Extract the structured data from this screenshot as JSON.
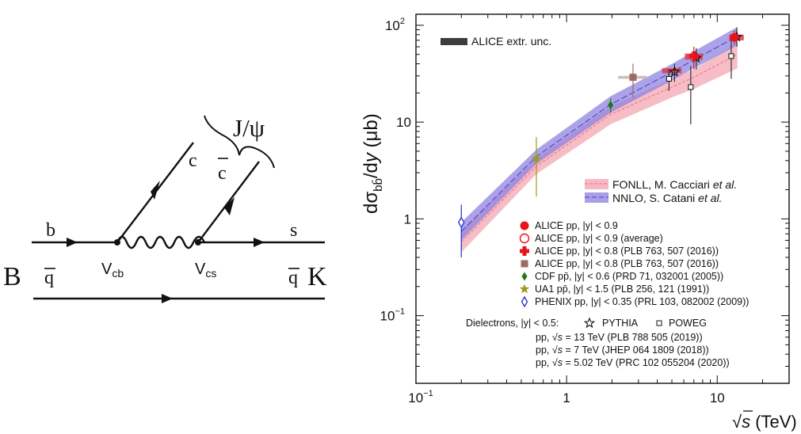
{
  "feynman": {
    "labels": {
      "b": "b",
      "s": "s",
      "c": "c",
      "cbar": "c",
      "qbar_in": "q",
      "qbar_out": "q",
      "B": "B",
      "K": "K",
      "Vcb_main": "V",
      "Vcb_sub": "cb",
      "Vcs_main": "V",
      "Vcs_sub": "cs",
      "jpsi": "J/ψ"
    }
  },
  "chart_data": {
    "type": "scatter",
    "xlabel_prefix": "√",
    "xlabel_var": "s",
    "xlabel_unit": " (TeV)",
    "ylabel_d1": "dσ",
    "ylabel_sub": "bb̄",
    "ylabel_d2": "/d",
    "ylabel_var": "y",
    "ylabel_unit": " (μb)",
    "x_scale": "log",
    "y_scale": "log",
    "xlim": [
      0.1,
      30
    ],
    "ylim": [
      0.02,
      130
    ],
    "x_ticks": [
      {
        "value": 0.1,
        "base": "10",
        "exp": "−1"
      },
      {
        "value": 1,
        "base": "1",
        "exp": ""
      },
      {
        "value": 10,
        "base": "10",
        "exp": ""
      }
    ],
    "y_ticks": [
      {
        "value": 0.1,
        "base": "10",
        "exp": "−1"
      },
      {
        "value": 1,
        "base": "1",
        "exp": ""
      },
      {
        "value": 10,
        "base": "10",
        "exp": ""
      },
      {
        "value": 100,
        "base": "10",
        "exp": "2"
      }
    ],
    "extr_unc_label": "ALICE extr. unc.",
    "bands": [
      {
        "name": "FONLL, M. Cacciari et al.",
        "name_main": "FONLL, M. Cacciari ",
        "name_it": "et al.",
        "color": "#f6b9c3",
        "x": [
          0.2,
          0.63,
          1.96,
          5.02,
          7,
          13.6
        ],
        "low": [
          0.45,
          2.9,
          9.5,
          18,
          22,
          36
        ],
        "high": [
          0.75,
          4.2,
          14.5,
          28,
          35,
          66
        ],
        "center": [
          0.58,
          3.5,
          12,
          23,
          29,
          50
        ]
      },
      {
        "name": "NNLO, S. Catani et al.",
        "name_main": "NNLO, S. Catani ",
        "name_it": "et al.",
        "color": "#8b7fe0",
        "x": [
          0.2,
          0.63,
          1.96,
          5.02,
          7,
          13.6
        ],
        "low": [
          0.6,
          3.7,
          12.5,
          27,
          36,
          62
        ],
        "high": [
          0.92,
          5.2,
          18.5,
          40,
          54,
          96
        ],
        "center": [
          0.74,
          4.4,
          15.2,
          33,
          44,
          77
        ]
      }
    ],
    "series": [
      {
        "name": "ALICE pp, |y| < 0.9",
        "marker": "circle-filled",
        "color": "#e8141d",
        "points": [
          {
            "x": 13,
            "y": 75,
            "lo": 63,
            "hi": 88
          }
        ]
      },
      {
        "name": "ALICE pp, |y| < 0.9 (average)",
        "marker": "circle-open",
        "color": "#e8141d",
        "points": []
      },
      {
        "name": "ALICE pp, |y| < 0.8 (PLB 763, 507 (2016))",
        "marker": "cross-filled",
        "color": "#e8141d",
        "points": [
          {
            "x": 7,
            "y": 48,
            "lo": 35,
            "hi": 60
          }
        ]
      },
      {
        "name": "ALICE pp, |y| < 0.8 (PLB 763, 507 (2016))",
        "marker": "square-filled",
        "color": "#9a6e64",
        "points": [
          {
            "x": 2.76,
            "y": 29,
            "lo": 18,
            "hi": 40
          }
        ]
      },
      {
        "name": "CDF pp̄, |y| < 0.6 (PRD 71, 032001 (2005))",
        "marker": "diamond-filled",
        "color": "#1a7a1a",
        "points": [
          {
            "x": 1.96,
            "y": 15,
            "lo": 12.5,
            "hi": 17.5
          }
        ]
      },
      {
        "name": "UA1 pp̄, |y| < 1.5 (PLB 256, 121 (1991))",
        "marker": "star-filled",
        "color": "#9a9a1e",
        "points": [
          {
            "x": 0.63,
            "y": 4.2,
            "lo": 1.7,
            "hi": 7.0
          }
        ]
      },
      {
        "name": "PHENIX pp, |y| < 0.35 (PRL 103, 082002 (2009))",
        "marker": "diamond-open",
        "color": "#1d2ed0",
        "points": [
          {
            "x": 0.2,
            "y": 0.92,
            "lo": 0.4,
            "hi": 1.4
          }
        ]
      }
    ],
    "dielectrons": {
      "label": "Dielectrons, |y| < 0.5:",
      "pythia_label": "PYTHIA",
      "powheg_label": "POWEG",
      "pythia": [
        {
          "x": 13,
          "y": 76,
          "lo": 60,
          "hi": 95
        },
        {
          "x": 7,
          "y": 46,
          "lo": 35,
          "hi": 58
        },
        {
          "x": 5.02,
          "y": 33,
          "lo": 26,
          "hi": 40
        }
      ],
      "powheg": [
        {
          "x": 13,
          "y": 48,
          "lo": 28,
          "hi": 78
        },
        {
          "x": 7,
          "y": 23,
          "lo": 9.5,
          "hi": 38
        },
        {
          "x": 5.02,
          "y": 28,
          "lo": 21,
          "hi": 35
        }
      ],
      "refs": [
        {
          "pre": "pp, ",
          "root": "√",
          "var": "s",
          "post": " = 13 TeV (PLB 788 505 (2019))"
        },
        {
          "pre": "pp, ",
          "root": "√",
          "var": "s",
          "post": " = 7 TeV (JHEP 064 1809 (2018))"
        },
        {
          "pre": "pp, ",
          "root": "√",
          "var": "s",
          "post": " = 5.02 TeV (PRC 102 055204 (2020))"
        }
      ]
    },
    "extr_unc_boxes": [
      {
        "x1": 12,
        "x2": 15,
        "y1": 70,
        "y2": 80
      },
      {
        "x1": 6.1,
        "x2": 8.0,
        "y1": 44,
        "y2": 51
      },
      {
        "x1": 4.3,
        "x2": 5.8,
        "y1": 32,
        "y2": 36
      },
      {
        "x1": 2.2,
        "x2": 3.4,
        "y1": 28,
        "y2": 30
      }
    ],
    "legend_placement": "bottom-center"
  }
}
